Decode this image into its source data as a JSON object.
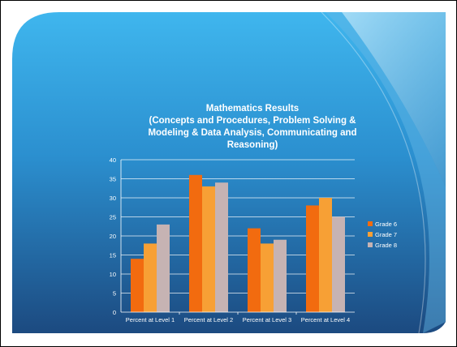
{
  "chart_data": {
    "type": "bar",
    "title_lines": [
      "Mathematics Results",
      "(Concepts and Procedures, Problem Solving &",
      "Modeling & Data Analysis, Communicating and",
      "Reasoning)"
    ],
    "xlabel": "",
    "ylabel": "",
    "categories": [
      "Percent at Level 1",
      "Percent at Level 2",
      "Percent at Level 3",
      "Percent at Level 4"
    ],
    "series": [
      {
        "name": "Grade 6",
        "values": [
          14,
          36,
          22,
          28
        ],
        "color": "#f26b0f"
      },
      {
        "name": "Grade 7",
        "values": [
          18,
          33,
          18,
          30
        ],
        "color": "#f7a035"
      },
      {
        "name": "Grade 8",
        "values": [
          23,
          34,
          19,
          25
        ],
        "color": "#c6b3b3"
      }
    ],
    "ylim": [
      0,
      40
    ],
    "yticks": [
      0,
      5,
      10,
      15,
      20,
      25,
      30,
      35,
      40
    ],
    "grid": true,
    "legend": "right"
  },
  "colors": {
    "background_top": "#3fb6ee",
    "background_bottom": "#1c4a80",
    "swoosh": "#8fd4f4",
    "gridline": "#ffffff"
  }
}
